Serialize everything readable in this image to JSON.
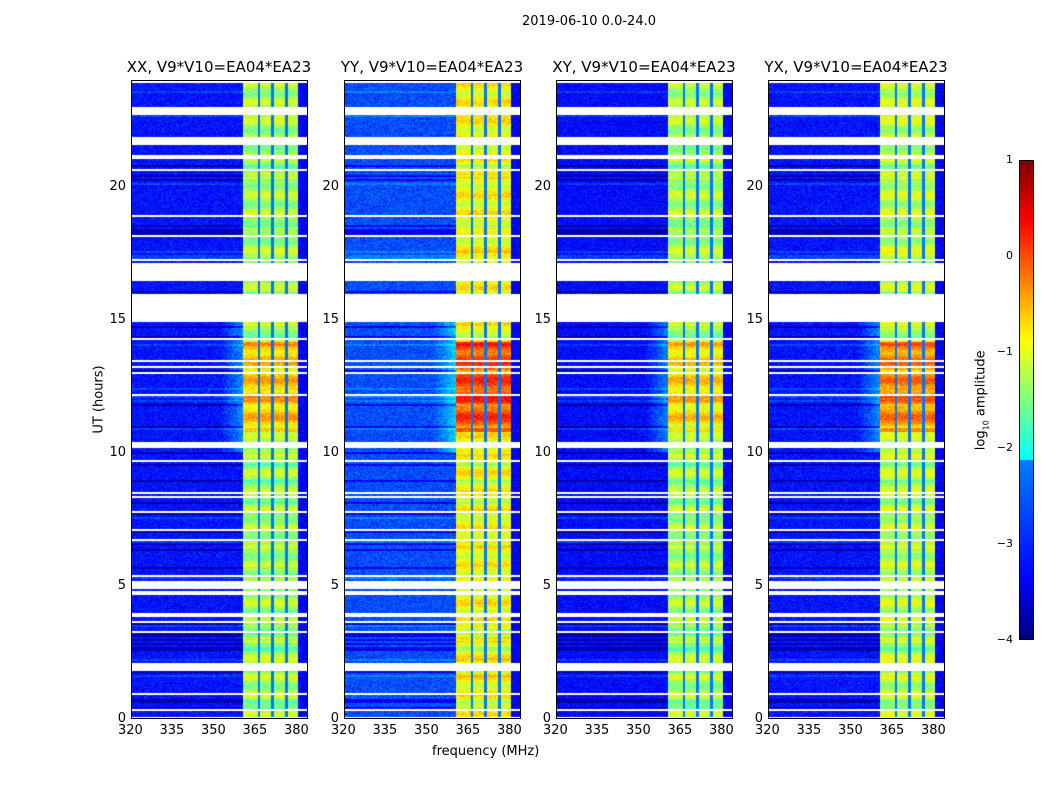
{
  "chart_data": {
    "type": "heatmap",
    "title": "2019-06-10 0.0-24.0",
    "xlabel": "frequency (MHz)",
    "ylabel": "UT (hours)",
    "xlim": [
      320,
      384
    ],
    "ylim": [
      0,
      24
    ],
    "xticks": [
      "320",
      "335",
      "350",
      "365",
      "380"
    ],
    "xtick_values": [
      320,
      335,
      350,
      365,
      380
    ],
    "yticks": [
      "0",
      "5",
      "10",
      "15",
      "20"
    ],
    "ytick_values": [
      0,
      5,
      10,
      15,
      20
    ],
    "colorbar": {
      "label": "log10 amplitude",
      "label_main": "log",
      "label_sub": "10",
      "label_rest": " amplitude",
      "range": [
        -4,
        1
      ],
      "ticks": [
        "1",
        "0",
        "−1",
        "−2",
        "−3",
        "−4"
      ],
      "tick_values": [
        1,
        0,
        -1,
        -2,
        -3,
        -4
      ],
      "colormap": "jet"
    },
    "rfi_band_mhz": [
      360.5,
      380.5
    ],
    "rfi_dark_channels_mhz": [
      366.3,
      371.3,
      376.3
    ],
    "flagged_ut_ranges": [
      [
        22.7,
        23.0
      ],
      [
        21.6,
        21.9
      ],
      [
        16.5,
        17.2
      ],
      [
        15.0,
        16.0
      ],
      [
        10.2,
        10.4
      ],
      [
        4.9,
        5.2
      ],
      [
        3.85,
        4.0
      ],
      [
        1.8,
        2.0
      ]
    ],
    "panels": [
      {
        "title": "XX, V9*V10=EA04*EA23",
        "background_log": -3.3,
        "band_log": -1.3,
        "peak_log": -0.6,
        "peak_ut": [
          10.8,
          14.2
        ]
      },
      {
        "title": "YY, V9*V10=EA04*EA23",
        "background_log": -3.0,
        "band_log": -0.9,
        "peak_log": 0.0,
        "peak_ut": [
          10.8,
          14.2
        ]
      },
      {
        "title": "XY, V9*V10=EA04*EA23",
        "background_log": -3.35,
        "band_log": -1.3,
        "peak_log": -0.7,
        "peak_ut": [
          10.8,
          14.2
        ]
      },
      {
        "title": "YX, V9*V10=EA04*EA23",
        "background_log": -3.3,
        "band_log": -1.2,
        "peak_log": -0.3,
        "peak_ut": [
          10.8,
          14.2
        ]
      }
    ]
  }
}
